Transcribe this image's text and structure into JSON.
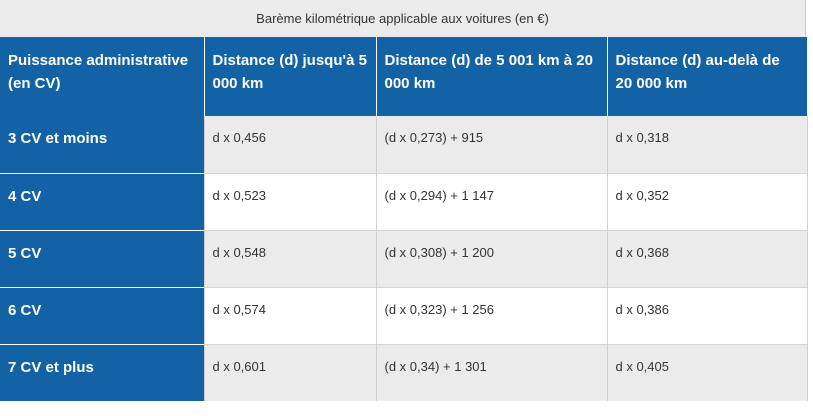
{
  "table": {
    "caption": "Barème kilométrique applicable aux voitures (en €)",
    "headers": [
      "Puissance administrative (en CV)",
      "Distance (d) jusqu'à 5 000 km",
      "Distance (d) de 5 001 km à 20 000 km",
      "Distance (d) au-delà de 20 000 km"
    ],
    "rows": [
      {
        "power": "3 CV et moins",
        "upto_5000": "d x 0,456",
        "from_5001_to_20000": "(d x 0,273) + 915",
        "over_20000": "d x 0,318"
      },
      {
        "power": "4 CV",
        "upto_5000": "d x 0,523",
        "from_5001_to_20000": "(d x 0,294) + 1 147",
        "over_20000": "d x 0,352"
      },
      {
        "power": "5 CV",
        "upto_5000": "d x 0,548",
        "from_5001_to_20000": "(d x 0,308) + 1 200",
        "over_20000": "d x 0,368"
      },
      {
        "power": "6 CV",
        "upto_5000": "d x 0,574",
        "from_5001_to_20000": "(d x 0,323) + 1 256",
        "over_20000": "d x 0,386"
      },
      {
        "power": "7 CV et plus",
        "upto_5000": "d x 0,601",
        "from_5001_to_20000": "(d x 0,34) + 1 301",
        "over_20000": "d x 0,405"
      }
    ]
  },
  "colors": {
    "header_blue": "#1462a6",
    "stripe_gray": "#ebebeb",
    "text_dark": "#333333"
  }
}
